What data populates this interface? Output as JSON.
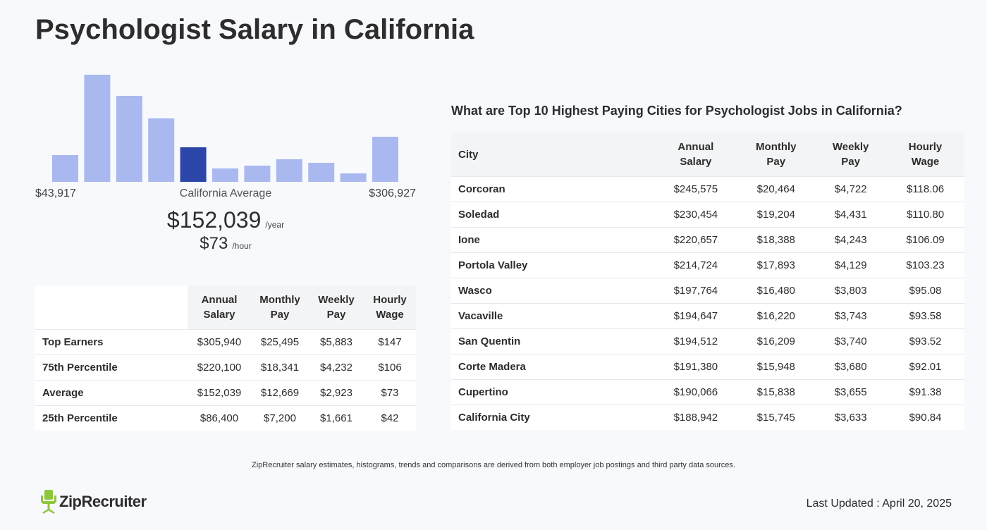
{
  "page": {
    "title": "Psychologist Salary in California"
  },
  "colors": {
    "bar": "#a9b9f0",
    "bar_highlight": "#2b46a8",
    "logo_green": "#8dc63f"
  },
  "chart_data": {
    "type": "bar",
    "values": [
      38,
      152,
      122,
      90,
      49,
      19,
      23,
      32,
      27,
      12,
      64
    ],
    "highlight_index": 4,
    "ylim": [
      0,
      152
    ],
    "min_label": "$43,917",
    "max_label": "$306,927",
    "center_label": "California Average"
  },
  "average": {
    "yearly": "$152,039",
    "yearly_unit": "/year",
    "hourly": "$73",
    "hourly_unit": "/hour"
  },
  "percentile_table": {
    "headers": [
      "Annual Salary",
      "Monthly Pay",
      "Weekly Pay",
      "Hourly Wage"
    ],
    "rows": [
      {
        "label": "Top Earners",
        "annual": "$305,940",
        "monthly": "$25,495",
        "weekly": "$5,883",
        "hourly": "$147"
      },
      {
        "label": "75th Percentile",
        "annual": "$220,100",
        "monthly": "$18,341",
        "weekly": "$4,232",
        "hourly": "$106"
      },
      {
        "label": "Average",
        "annual": "$152,039",
        "monthly": "$12,669",
        "weekly": "$2,923",
        "hourly": "$73"
      },
      {
        "label": "25th Percentile",
        "annual": "$86,400",
        "monthly": "$7,200",
        "weekly": "$1,661",
        "hourly": "$42"
      }
    ]
  },
  "cities": {
    "heading": "What are Top 10 Highest Paying Cities for Psychologist Jobs in California?",
    "headers": [
      "City",
      "Annual Salary",
      "Monthly Pay",
      "Weekly Pay",
      "Hourly Wage"
    ],
    "rows": [
      {
        "city": "Corcoran",
        "annual": "$245,575",
        "monthly": "$20,464",
        "weekly": "$4,722",
        "hourly": "$118.06"
      },
      {
        "city": "Soledad",
        "annual": "$230,454",
        "monthly": "$19,204",
        "weekly": "$4,431",
        "hourly": "$110.80"
      },
      {
        "city": "Ione",
        "annual": "$220,657",
        "monthly": "$18,388",
        "weekly": "$4,243",
        "hourly": "$106.09"
      },
      {
        "city": "Portola Valley",
        "annual": "$214,724",
        "monthly": "$17,893",
        "weekly": "$4,129",
        "hourly": "$103.23"
      },
      {
        "city": "Wasco",
        "annual": "$197,764",
        "monthly": "$16,480",
        "weekly": "$3,803",
        "hourly": "$95.08"
      },
      {
        "city": "Vacaville",
        "annual": "$194,647",
        "monthly": "$16,220",
        "weekly": "$3,743",
        "hourly": "$93.58"
      },
      {
        "city": "San Quentin",
        "annual": "$194,512",
        "monthly": "$16,209",
        "weekly": "$3,740",
        "hourly": "$93.52"
      },
      {
        "city": "Corte Madera",
        "annual": "$191,380",
        "monthly": "$15,948",
        "weekly": "$3,680",
        "hourly": "$92.01"
      },
      {
        "city": "Cupertino",
        "annual": "$190,066",
        "monthly": "$15,838",
        "weekly": "$3,655",
        "hourly": "$91.38"
      },
      {
        "city": "California City",
        "annual": "$188,942",
        "monthly": "$15,745",
        "weekly": "$3,633",
        "hourly": "$90.84"
      }
    ]
  },
  "footer": {
    "note": "ZipRecruiter salary estimates, histograms, trends and comparisons are derived from both employer job postings and third party data sources.",
    "logo_text": "ZipRecruiter",
    "logo_icon": "ziprecruiter-chair-icon",
    "last_updated": "Last Updated : April 20, 2025"
  }
}
